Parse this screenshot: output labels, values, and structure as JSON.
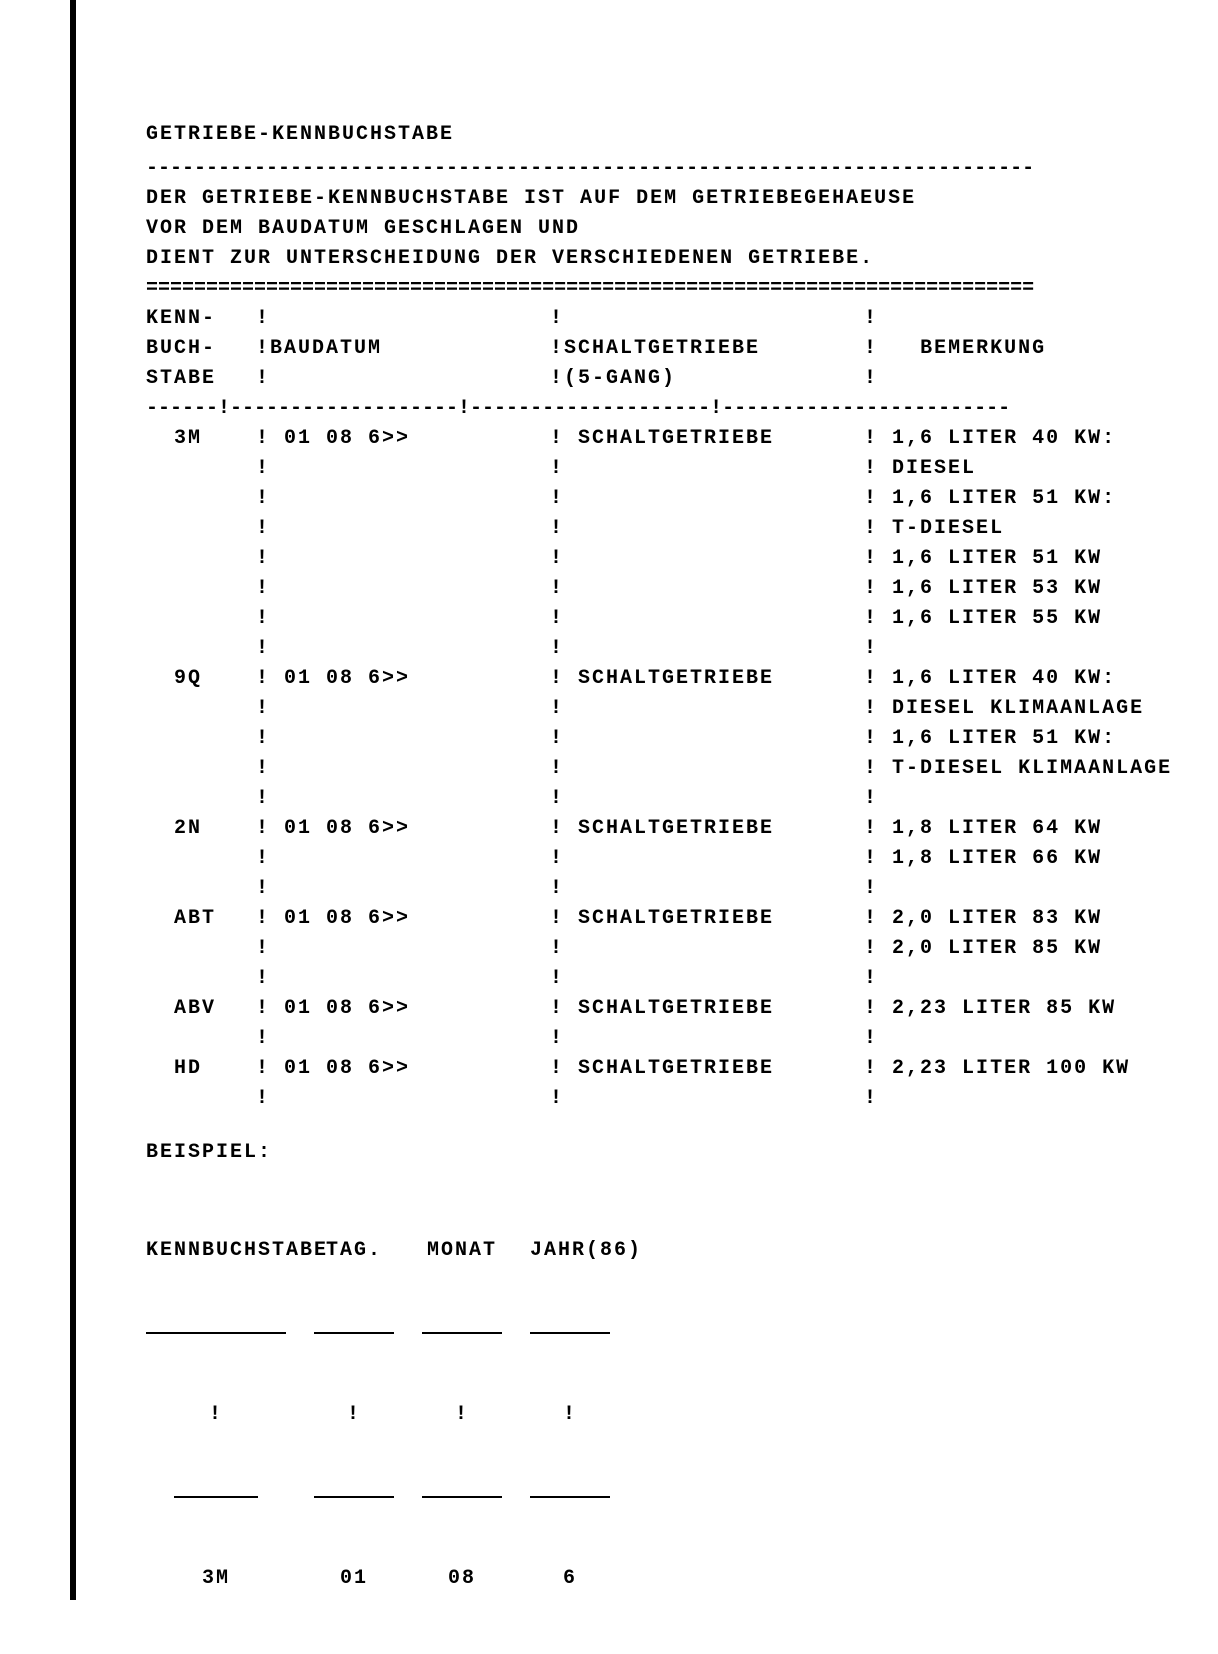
{
  "title": "GETRIEBE-KENNBUCHSTABE",
  "dash_sep": "--------------------------------------------------------------------------",
  "dbl_sep": "==========================================================================",
  "description": [
    "DER GETRIEBE-KENNBUCHSTABE IST AUF DEM GETRIEBEGEHAEUSE",
    "VOR DEM BAUDATUM GESCHLAGEN UND",
    "DIENT ZUR UNTERSCHEIDUNG DER VERSCHIEDENEN GETRIEBE."
  ],
  "header": {
    "kenn": [
      "KENN-",
      "BUCH-",
      "STABE"
    ],
    "bau": "BAUDATUM",
    "schalt": [
      "SCHALTGETRIEBE",
      "(5-GANG)"
    ],
    "bemerk": "BEMERKUNG"
  },
  "header_sep": "------!-------------------!--------------------!------------------------",
  "sep_char": "!",
  "rows": [
    {
      "kenn": "3M",
      "bau": "01 08 6>>",
      "schalt": "SCHALTGETRIEBE",
      "bemerk": [
        "1,6 LITER 40 KW:",
        "DIESEL",
        "1,6 LITER 51 KW:",
        "T-DIESEL",
        "1,6 LITER 51 KW",
        "1,6 LITER 53 KW",
        "1,6 LITER 55 KW"
      ]
    },
    {
      "kenn": "9Q",
      "bau": "01 08 6>>",
      "schalt": "SCHALTGETRIEBE",
      "bemerk": [
        "1,6 LITER 40 KW:",
        "DIESEL KLIMAANLAGE",
        "1,6 LITER 51 KW:",
        "T-DIESEL KLIMAANLAGE"
      ]
    },
    {
      "kenn": "2N",
      "bau": "01 08 6>>",
      "schalt": "SCHALTGETRIEBE",
      "bemerk": [
        "1,8 LITER 64 KW",
        "1,8 LITER 66 KW"
      ]
    },
    {
      "kenn": "ABT",
      "bau": "01 08 6>>",
      "schalt": "SCHALTGETRIEBE",
      "bemerk": [
        "2,0 LITER 83 KW",
        "2,0 LITER 85 KW"
      ]
    },
    {
      "kenn": "ABV",
      "bau": "01 08 6>>",
      "schalt": "SCHALTGETRIEBE",
      "bemerk": [
        "2,23 LITER 85 KW"
      ]
    },
    {
      "kenn": "HD",
      "bau": "01 08 6>>",
      "schalt": "SCHALTGETRIEBE",
      "bemerk": [
        "2,23 LITER 100 KW"
      ]
    }
  ],
  "beispiel": {
    "label": "BEISPIEL:",
    "cols": [
      "KENNBUCHSTABE",
      "TAG.",
      "MONAT",
      "JAHR(86)"
    ],
    "vals": [
      "3M",
      "01",
      "08",
      "6"
    ]
  },
  "style": {
    "font_family": "Courier New",
    "font_size_pt": 15,
    "text_color": "#000000",
    "background_color": "#ffffff",
    "border_left_color": "#000000"
  }
}
